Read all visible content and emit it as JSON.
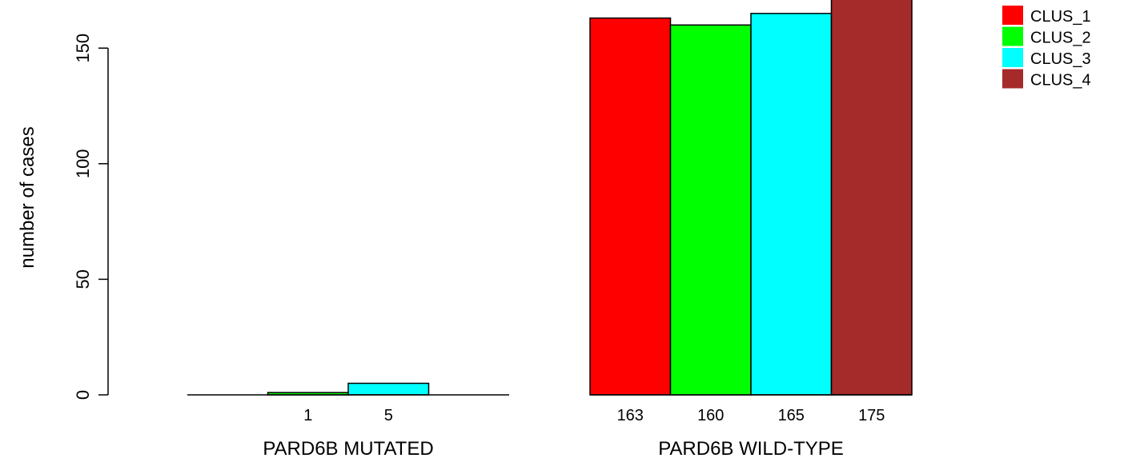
{
  "chart_data": {
    "type": "bar",
    "ylabel": "number of cases",
    "ylim": [
      0,
      175
    ],
    "yticks": [
      0,
      50,
      100,
      150
    ],
    "legend": {
      "position": "top-right",
      "entries": [
        {
          "name": "CLUS_1",
          "color": "#ff0000"
        },
        {
          "name": "CLUS_2",
          "color": "#00ff00"
        },
        {
          "name": "CLUS_3",
          "color": "#00ffff"
        },
        {
          "name": "CLUS_4",
          "color": "#a52a2a"
        }
      ]
    },
    "groups": [
      {
        "label": "PARD6B MUTATED",
        "bars": [
          {
            "series": "CLUS_1",
            "value": 0,
            "label": ""
          },
          {
            "series": "CLUS_2",
            "value": 1,
            "label": "1"
          },
          {
            "series": "CLUS_3",
            "value": 5,
            "label": "5"
          },
          {
            "series": "CLUS_4",
            "value": 0,
            "label": ""
          }
        ]
      },
      {
        "label": "PARD6B WILD-TYPE",
        "bars": [
          {
            "series": "CLUS_1",
            "value": 163,
            "label": "163"
          },
          {
            "series": "CLUS_2",
            "value": 160,
            "label": "160"
          },
          {
            "series": "CLUS_3",
            "value": 165,
            "label": "165"
          },
          {
            "series": "CLUS_4",
            "value": 175,
            "label": "175"
          }
        ]
      }
    ]
  }
}
